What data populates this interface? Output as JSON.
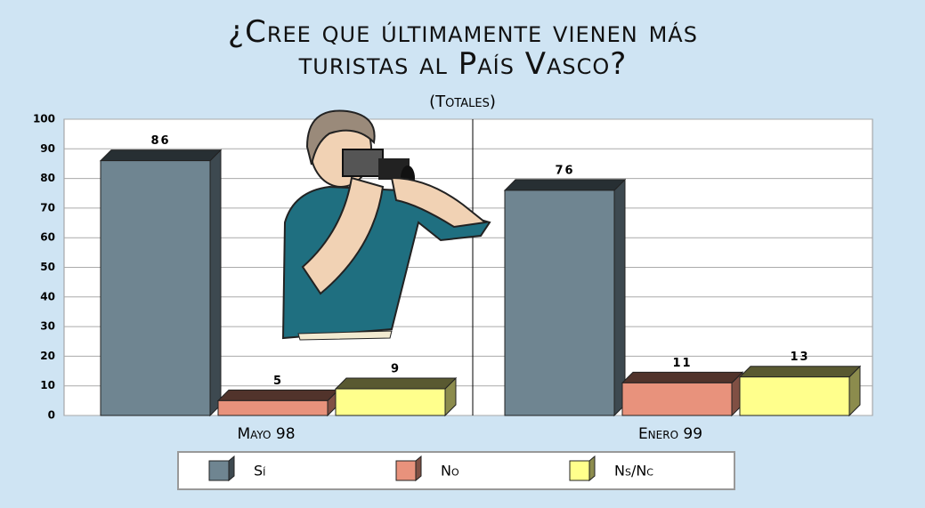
{
  "chart_data": {
    "type": "bar3d",
    "title": "¿Cree que últimamente vienen más turistas al País Vasco?",
    "subtitle": "(Totales)",
    "categories": [
      "Mayo 98",
      "Enero 99"
    ],
    "series": [
      {
        "name": "Sí",
        "color": "#6f8591",
        "values": [
          86,
          76
        ]
      },
      {
        "name": "No",
        "color": "#e8927c",
        "values": [
          5,
          11
        ]
      },
      {
        "name": "Ns/Nc",
        "color": "#ffff8c",
        "values": [
          9,
          13
        ]
      }
    ],
    "ylim": [
      0,
      100
    ],
    "yticks": [
      0,
      10,
      20,
      30,
      40,
      50,
      60,
      70,
      80,
      90,
      100
    ],
    "grid": true
  }
}
